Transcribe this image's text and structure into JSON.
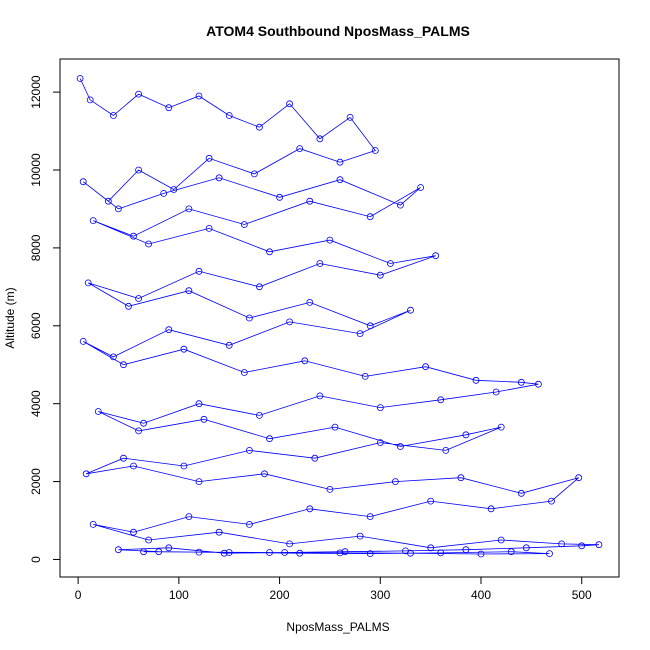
{
  "chart_data": {
    "type": "line",
    "title": "ATOM4 Southbound NposMass_PALMS",
    "xlabel": "NposMass_PALMS",
    "ylabel": "Altitude (m)",
    "xlim": [
      -18,
      537
    ],
    "ylim": [
      -450,
      12850
    ],
    "x_ticks": [
      0,
      100,
      200,
      300,
      400,
      500
    ],
    "y_ticks": [
      0,
      2000,
      4000,
      6000,
      8000,
      10000,
      12000
    ],
    "markers": "open-circle",
    "line_color": "#0000ff",
    "grid": false,
    "legend": "none",
    "series": [
      {
        "x": [
          2,
          12,
          35,
          60,
          90,
          120,
          150,
          180,
          210,
          240,
          270,
          295,
          260,
          220,
          175,
          130,
          95,
          60,
          30,
          5,
          40,
          85,
          140,
          200,
          260,
          320,
          340,
          290,
          230,
          165,
          110,
          55,
          15,
          70,
          130,
          190,
          250,
          310,
          355,
          300,
          240,
          180,
          120,
          60,
          10,
          50,
          110,
          170,
          230,
          290,
          330,
          280,
          210,
          150,
          90,
          35,
          5,
          45,
          105,
          165,
          225,
          285,
          345,
          395,
          440,
          457,
          415,
          360,
          300,
          240,
          180,
          120,
          65,
          20,
          60,
          125,
          190,
          255,
          320,
          385,
          420,
          365,
          300,
          235,
          170,
          105,
          45,
          8,
          55,
          120,
          185,
          250,
          315,
          380,
          440,
          497,
          470,
          410,
          350,
          290,
          230,
          170,
          110,
          55,
          15,
          70,
          140,
          210,
          280,
          350,
          420,
          480,
          517,
          500,
          445,
          385,
          325,
          265,
          205,
          145,
          90,
          40,
          80,
          150,
          220,
          290,
          360,
          430,
          468,
          400,
          330,
          260,
          190,
          120,
          65
        ],
        "y": [
          12350,
          11800,
          11400,
          11950,
          11600,
          11900,
          11400,
          11100,
          11700,
          10800,
          11350,
          10500,
          10200,
          10550,
          9900,
          10300,
          9500,
          10000,
          9200,
          9700,
          9000,
          9400,
          9800,
          9300,
          9750,
          9100,
          9550,
          8800,
          9200,
          8600,
          9000,
          8300,
          8700,
          8100,
          8500,
          7900,
          8200,
          7600,
          7800,
          7300,
          7600,
          7000,
          7400,
          6700,
          7100,
          6500,
          6900,
          6200,
          6600,
          6000,
          6400,
          5800,
          6100,
          5500,
          5900,
          5200,
          5600,
          5000,
          5400,
          4800,
          5100,
          4700,
          4950,
          4600,
          4550,
          4500,
          4300,
          4100,
          3900,
          4200,
          3700,
          4000,
          3500,
          3800,
          3300,
          3600,
          3100,
          3400,
          2900,
          3200,
          3400,
          2800,
          3000,
          2600,
          2800,
          2400,
          2600,
          2200,
          2400,
          2000,
          2200,
          1800,
          2000,
          2100,
          1700,
          2100,
          1500,
          1300,
          1500,
          1100,
          1300,
          900,
          1100,
          700,
          900,
          500,
          700,
          400,
          600,
          300,
          500,
          400,
          380,
          350,
          300,
          250,
          220,
          200,
          180,
          160,
          300,
          250,
          200,
          180,
          160,
          150,
          170,
          200,
          150,
          140,
          160,
          170,
          180,
          190,
          200
        ]
      }
    ]
  }
}
